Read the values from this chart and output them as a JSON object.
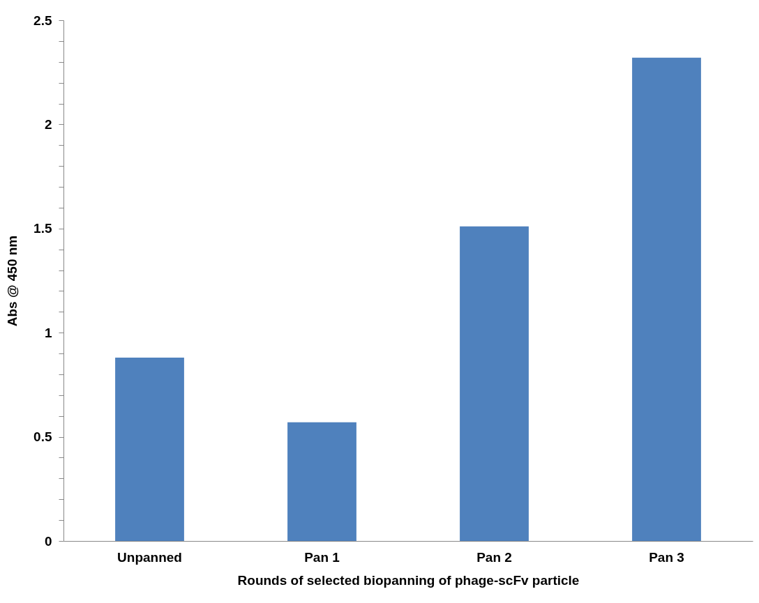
{
  "chart_data": {
    "type": "bar",
    "xlabel": "Rounds of selected biopanning of phage-scFv particle",
    "ylabel": "Abs @ 450 nm",
    "categories": [
      "Unpanned",
      "Pan 1",
      "Pan 2",
      "Pan 3"
    ],
    "values": [
      0.88,
      0.57,
      1.51,
      2.32
    ],
    "color": "#4f81bd",
    "ylim": [
      0,
      2.5
    ],
    "yticks": [
      0,
      {
        "value": 0.1,
        "label": null
      },
      {
        "value": 0.2,
        "label": null
      },
      {
        "value": 0.3,
        "label": null
      },
      {
        "value": 0.4,
        "label": null
      },
      0.5,
      {
        "value": 0.6,
        "label": null
      },
      {
        "value": 0.7,
        "label": null
      },
      {
        "value": 0.8,
        "label": null
      },
      {
        "value": 0.9,
        "label": null
      },
      1,
      {
        "value": 1.1,
        "label": null
      },
      {
        "value": 1.2,
        "label": null
      },
      {
        "value": 1.3,
        "label": null
      },
      {
        "value": 1.4,
        "label": null
      },
      1.5,
      {
        "value": 1.6,
        "label": null
      },
      {
        "value": 1.7,
        "label": null
      },
      {
        "value": 1.8,
        "label": null
      },
      {
        "value": 1.9,
        "label": null
      },
      2,
      {
        "value": 2.1,
        "label": null
      },
      {
        "value": 2.2,
        "label": null
      },
      {
        "value": 2.3,
        "label": null
      },
      {
        "value": 2.4,
        "label": null
      },
      2.5
    ],
    "grid": false
  }
}
